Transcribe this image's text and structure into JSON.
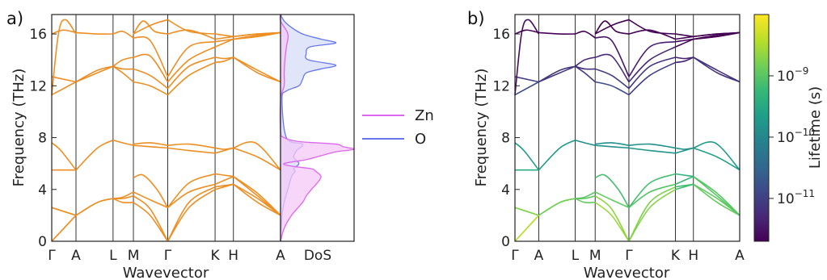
{
  "colors": {
    "bands": "#ee8e22",
    "zn": "#dd66ee",
    "zn_fill": "#f4c8f7",
    "o": "#6677ee",
    "o_fill": "#d6dcf8",
    "divider": "#333333",
    "axes": "#222222"
  },
  "chart_data": [
    {
      "type": "line",
      "panel_label": "a)",
      "xlabel": "Wavevector",
      "ylabel": "Frequency (THz)",
      "ylim": [
        0,
        17.5
      ],
      "yticks": [
        0,
        4,
        8,
        12,
        16
      ],
      "x_ticks": [
        "Γ",
        "A",
        "L",
        "M",
        "Γ",
        "K",
        "H",
        "A"
      ],
      "kpath_position": [
        0,
        0.106,
        0.268,
        0.357,
        0.507,
        0.714,
        0.794,
        1.0
      ],
      "series_color": "bands",
      "branches": [
        {
          "x": [
            0,
            0.106
          ],
          "y": [
            0,
            2.0
          ]
        },
        {
          "x": [
            0,
            0.106
          ],
          "y": [
            0,
            2.0
          ]
        },
        {
          "x": [
            0,
            0.106
          ],
          "y": [
            2.6,
            2.0
          ]
        },
        {
          "x": [
            0,
            0.106
          ],
          "y": [
            2.6,
            2.0
          ]
        },
        {
          "x": [
            0,
            0.04,
            0.106
          ],
          "y": [
            7.6,
            7.0,
            5.5
          ]
        },
        {
          "x": [
            0,
            0.106
          ],
          "y": [
            5.5,
            5.5
          ]
        },
        {
          "x": [
            0,
            0.106
          ],
          "y": [
            11.3,
            12.3
          ]
        },
        {
          "x": [
            0,
            0.106
          ],
          "y": [
            12.7,
            12.3
          ]
        },
        {
          "x": [
            0,
            0.03,
            0.06,
            0.106
          ],
          "y": [
            11.3,
            16.1,
            17.1,
            16.0
          ]
        },
        {
          "x": [
            0,
            0.05,
            0.106
          ],
          "y": [
            16.0,
            16.3,
            16.1
          ]
        },
        {
          "x": [
            0.106,
            0.2,
            0.268
          ],
          "y": [
            2.0,
            3.0,
            3.3
          ]
        },
        {
          "x": [
            0.106,
            0.2,
            0.268
          ],
          "y": [
            2.0,
            3.0,
            3.3
          ]
        },
        {
          "x": [
            0.106,
            0.2,
            0.268
          ],
          "y": [
            5.5,
            7.2,
            7.8
          ]
        },
        {
          "x": [
            0.106,
            0.2,
            0.268
          ],
          "y": [
            12.3,
            13.0,
            13.5
          ]
        },
        {
          "x": [
            0.106,
            0.2,
            0.268
          ],
          "y": [
            12.3,
            13.2,
            13.5
          ]
        },
        {
          "x": [
            0.106,
            0.2,
            0.268
          ],
          "y": [
            16.1,
            16.0,
            16.0
          ]
        },
        {
          "x": [
            0.268,
            0.31,
            0.357
          ],
          "y": [
            3.3,
            3.0,
            3.0
          ]
        },
        {
          "x": [
            0.268,
            0.31,
            0.357
          ],
          "y": [
            3.3,
            3.3,
            3.5
          ]
        },
        {
          "x": [
            0.268,
            0.31,
            0.357
          ],
          "y": [
            3.3,
            3.4,
            3.8
          ]
        },
        {
          "x": [
            0.268,
            0.31,
            0.357
          ],
          "y": [
            7.8,
            7.6,
            7.4
          ]
        },
        {
          "x": [
            0.268,
            0.31,
            0.357
          ],
          "y": [
            13.5,
            13.0,
            12.3
          ]
        },
        {
          "x": [
            0.268,
            0.31,
            0.357
          ],
          "y": [
            13.5,
            13.3,
            13.3
          ]
        },
        {
          "x": [
            0.268,
            0.31,
            0.357
          ],
          "y": [
            13.5,
            14.0,
            14.2
          ]
        },
        {
          "x": [
            0.268,
            0.31,
            0.357
          ],
          "y": [
            16.0,
            16.2,
            15.7
          ]
        },
        {
          "x": [
            0.357,
            0.43,
            0.507
          ],
          "y": [
            3.0,
            2.0,
            0
          ]
        },
        {
          "x": [
            0.357,
            0.43,
            0.507
          ],
          "y": [
            3.5,
            2.5,
            0
          ]
        },
        {
          "x": [
            0.357,
            0.43,
            0.507
          ],
          "y": [
            3.8,
            3.2,
            2.6
          ]
        },
        {
          "x": [
            0.357,
            0.4,
            0.46,
            0.507
          ],
          "y": [
            4.9,
            5.1,
            4.0,
            2.6
          ]
        },
        {
          "x": [
            0.357,
            0.43,
            0.507
          ],
          "y": [
            7.4,
            7.3,
            7.2
          ]
        },
        {
          "x": [
            0.357,
            0.43,
            0.507
          ],
          "y": [
            7.5,
            7.6,
            7.4
          ]
        },
        {
          "x": [
            0.357,
            0.43,
            0.507
          ],
          "y": [
            12.3,
            12.0,
            11.3
          ]
        },
        {
          "x": [
            0.357,
            0.43,
            0.507
          ],
          "y": [
            13.3,
            12.8,
            11.8
          ]
        },
        {
          "x": [
            0.357,
            0.43,
            0.507
          ],
          "y": [
            14.2,
            14.3,
            12.3
          ]
        },
        {
          "x": [
            0.357,
            0.43,
            0.507
          ],
          "y": [
            15.7,
            15.5,
            12.7
          ]
        },
        {
          "x": [
            0.357,
            0.4,
            0.45,
            0.507
          ],
          "y": [
            16.0,
            17.0,
            16.2,
            16.0
          ]
        },
        {
          "x": [
            0.357,
            0.4,
            0.45,
            0.507
          ],
          "y": [
            16.0,
            16.4,
            16.8,
            17.1
          ]
        },
        {
          "x": [
            0.507,
            0.6,
            0.714
          ],
          "y": [
            0,
            3.0,
            4.2
          ]
        },
        {
          "x": [
            0.507,
            0.6,
            0.714
          ],
          "y": [
            0,
            2.6,
            4.0
          ]
        },
        {
          "x": [
            0.507,
            0.6,
            0.714
          ],
          "y": [
            2.6,
            3.8,
            4.4
          ]
        },
        {
          "x": [
            0.507,
            0.6,
            0.714
          ],
          "y": [
            2.6,
            4.5,
            5.2
          ]
        },
        {
          "x": [
            0.507,
            0.6,
            0.714
          ],
          "y": [
            7.2,
            7.0,
            6.8
          ]
        },
        {
          "x": [
            0.507,
            0.6,
            0.714
          ],
          "y": [
            7.4,
            7.5,
            7.2
          ]
        },
        {
          "x": [
            0.507,
            0.6,
            0.714
          ],
          "y": [
            11.3,
            12.8,
            13.8
          ]
        },
        {
          "x": [
            0.507,
            0.6,
            0.714
          ],
          "y": [
            11.8,
            13.5,
            14.2
          ]
        },
        {
          "x": [
            0.507,
            0.6,
            0.714
          ],
          "y": [
            12.3,
            14.0,
            15.0
          ]
        },
        {
          "x": [
            0.507,
            0.6,
            0.714
          ],
          "y": [
            12.7,
            15.0,
            15.4
          ]
        },
        {
          "x": [
            0.507,
            0.6,
            0.714
          ],
          "y": [
            16.0,
            16.3,
            15.6
          ]
        },
        {
          "x": [
            0.507,
            0.6,
            0.714
          ],
          "y": [
            17.1,
            16.2,
            16.0
          ]
        },
        {
          "x": [
            0.714,
            0.754,
            0.794
          ],
          "y": [
            4.2,
            4.3,
            4.4
          ]
        },
        {
          "x": [
            0.714,
            0.754,
            0.794
          ],
          "y": [
            4.0,
            4.2,
            4.4
          ]
        },
        {
          "x": [
            0.714,
            0.754,
            0.794
          ],
          "y": [
            4.4,
            4.7,
            5.0
          ]
        },
        {
          "x": [
            0.714,
            0.754,
            0.794
          ],
          "y": [
            5.2,
            5.1,
            5.0
          ]
        },
        {
          "x": [
            0.714,
            0.754,
            0.794
          ],
          "y": [
            6.8,
            7.0,
            7.2
          ]
        },
        {
          "x": [
            0.714,
            0.754,
            0.794
          ],
          "y": [
            7.2,
            7.1,
            7.2
          ]
        },
        {
          "x": [
            0.714,
            0.754,
            0.794
          ],
          "y": [
            13.8,
            13.9,
            14.2
          ]
        },
        {
          "x": [
            0.714,
            0.754,
            0.794
          ],
          "y": [
            14.2,
            14.1,
            14.2
          ]
        },
        {
          "x": [
            0.714,
            0.754,
            0.794
          ],
          "y": [
            15.0,
            15.3,
            15.6
          ]
        },
        {
          "x": [
            0.714,
            0.754,
            0.794
          ],
          "y": [
            15.4,
            15.5,
            15.6
          ]
        },
        {
          "x": [
            0.714,
            0.754,
            0.794
          ],
          "y": [
            15.6,
            15.7,
            15.8
          ]
        },
        {
          "x": [
            0.714,
            0.754,
            0.794
          ],
          "y": [
            16.0,
            15.9,
            15.8
          ]
        },
        {
          "x": [
            0.794,
            0.9,
            1.0
          ],
          "y": [
            4.4,
            3.0,
            2.0
          ]
        },
        {
          "x": [
            0.794,
            0.9,
            1.0
          ],
          "y": [
            4.4,
            3.3,
            2.0
          ]
        },
        {
          "x": [
            0.794,
            0.9,
            1.0
          ],
          "y": [
            5.0,
            3.5,
            2.0
          ]
        },
        {
          "x": [
            0.794,
            0.9,
            1.0
          ],
          "y": [
            5.0,
            3.7,
            2.0
          ]
        },
        {
          "x": [
            0.794,
            0.89,
            1.0
          ],
          "y": [
            7.2,
            7.6,
            5.5
          ]
        },
        {
          "x": [
            0.794,
            0.9,
            1.0
          ],
          "y": [
            7.2,
            6.5,
            5.5
          ]
        },
        {
          "x": [
            0.794,
            0.9,
            1.0
          ],
          "y": [
            14.2,
            13.2,
            12.3
          ]
        },
        {
          "x": [
            0.794,
            0.9,
            1.0
          ],
          "y": [
            14.2,
            13.0,
            12.3
          ]
        },
        {
          "x": [
            0.794,
            0.9,
            1.0
          ],
          "y": [
            15.6,
            15.9,
            16.1
          ]
        },
        {
          "x": [
            0.794,
            0.9,
            1.0
          ],
          "y": [
            15.6,
            15.8,
            16.1
          ]
        },
        {
          "x": [
            0.794,
            0.9,
            1.0
          ],
          "y": [
            15.8,
            16.0,
            16.1
          ]
        },
        {
          "x": [
            0.794,
            0.9,
            1.0
          ],
          "y": [
            15.8,
            16.0,
            16.1
          ]
        }
      ]
    },
    {
      "type": "area",
      "xlabel": "DoS",
      "ylim": [
        0,
        17.5
      ],
      "legend": [
        "Zn",
        "O"
      ],
      "series": [
        {
          "name": "Zn",
          "color": "zn",
          "fill": "zn_fill",
          "frequency": [
            0,
            1.0,
            2.0,
            3.0,
            3.5,
            4.0,
            4.5,
            5.0,
            5.4,
            5.6,
            5.8,
            6.0,
            6.3,
            6.6,
            6.9,
            7.1,
            7.3,
            7.5,
            7.7,
            8.0,
            8.5,
            11.0,
            12.0,
            13.0,
            14.0,
            15.0,
            16.0,
            17.0,
            17.5
          ],
          "density": [
            0,
            0.05,
            0.15,
            0.3,
            0.35,
            0.42,
            0.5,
            0.55,
            0.48,
            0.42,
            0.15,
            0.05,
            0.35,
            0.55,
            0.75,
            1.0,
            0.85,
            0.75,
            0.25,
            0.05,
            0,
            0,
            0.05,
            0.05,
            0.06,
            0.08,
            0.1,
            0,
            0
          ]
        },
        {
          "name": "O",
          "color": "o",
          "fill": "o_fill",
          "frequency": [
            0,
            2.0,
            3.0,
            4.0,
            5.0,
            5.4,
            5.6,
            6.0,
            6.5,
            7.0,
            7.5,
            8.0,
            11.0,
            11.6,
            12.0,
            12.5,
            13.0,
            13.3,
            13.6,
            14.0,
            14.5,
            15.0,
            15.3,
            15.6,
            16.0,
            16.5,
            17.0,
            17.5
          ],
          "density": [
            0,
            0.02,
            0.05,
            0.1,
            0.15,
            0.2,
            0.18,
            0.25,
            0.18,
            0.22,
            0.3,
            0.08,
            0.02,
            0.08,
            0.25,
            0.3,
            0.35,
            0.55,
            0.75,
            0.38,
            0.35,
            0.4,
            0.75,
            0.55,
            0.3,
            0.15,
            0.05,
            0
          ]
        }
      ]
    },
    {
      "type": "line",
      "panel_label": "b)",
      "xlabel": "Wavevector",
      "ylabel": "Frequency (THz)",
      "ylim": [
        0,
        17.5
      ],
      "yticks": [
        0,
        4,
        8,
        12,
        16
      ],
      "x_ticks": [
        "Γ",
        "A",
        "L",
        "M",
        "Γ",
        "K",
        "H",
        "A"
      ],
      "kpath_position": [
        0,
        0.106,
        0.268,
        0.357,
        0.507,
        0.714,
        0.794,
        1.0
      ],
      "same_branches_as": "a)",
      "colorbar": {
        "label": "Lifetime (s)",
        "scale": "log",
        "range": [
          2e-12,
          1e-08
        ],
        "ticks": [
          "10^-11",
          "10^-10",
          "10^-9"
        ],
        "tick_values": [
          1e-11,
          1e-10,
          1e-09
        ],
        "colormap": [
          "#440154",
          "#482878",
          "#3e4989",
          "#31688e",
          "#26828e",
          "#1f9e89",
          "#35b779",
          "#6ece58",
          "#b5de2b",
          "#fde725"
        ]
      }
    }
  ]
}
